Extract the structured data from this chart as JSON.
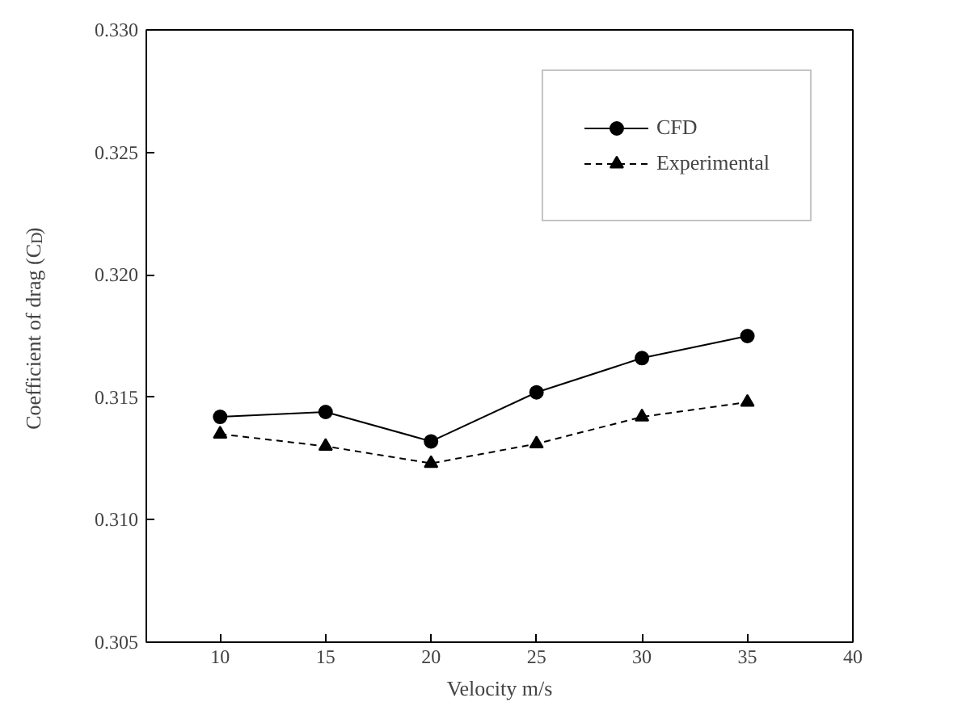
{
  "chart_data": {
    "type": "line",
    "xlabel": "Velocity m/s",
    "ylabel": "Coefficient of drag (C$_{D}$)",
    "x": [
      10,
      15,
      20,
      25,
      30,
      35
    ],
    "series": [
      {
        "name": "CFD",
        "color": "#000000",
        "marker": "circle",
        "line_style": "solid",
        "values": [
          0.3142,
          0.3144,
          0.3132,
          0.3152,
          0.3166,
          0.3175
        ]
      },
      {
        "name": "Experimental",
        "color": "#000000",
        "marker": "triangle",
        "line_style": "dashed",
        "values": [
          0.3135,
          0.313,
          0.3123,
          0.3131,
          0.3142,
          0.3148
        ]
      }
    ],
    "xlim": [
      6.5,
      40
    ],
    "xticks": [
      10,
      15,
      20,
      25,
      30,
      35,
      40
    ],
    "ylim": [
      0.305,
      0.33
    ],
    "yticks": [
      {
        "value": 0.305,
        "label": "0.305"
      },
      {
        "value": 0.31,
        "label": "0.310"
      },
      {
        "value": 0.315,
        "label": "0.315"
      },
      {
        "value": 0.32,
        "label": "0.320"
      },
      {
        "value": 0.325,
        "label": "0.325"
      },
      {
        "value": 0.33,
        "label": "0.330"
      }
    ],
    "grid": false,
    "legend": "top right"
  }
}
